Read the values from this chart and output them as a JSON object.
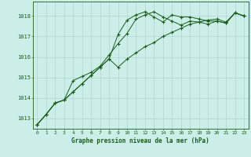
{
  "title": "Graphe pression niveau de la mer (hPa)",
  "background_color": "#cceee8",
  "grid_color": "#aacccc",
  "line_color": "#1a5c1a",
  "xlim": [
    -0.5,
    23.5
  ],
  "ylim": [
    1012.5,
    1018.7
  ],
  "yticks": [
    1013,
    1014,
    1015,
    1016,
    1017,
    1018
  ],
  "xticks": [
    0,
    1,
    2,
    3,
    4,
    5,
    6,
    7,
    8,
    9,
    10,
    11,
    12,
    13,
    14,
    15,
    16,
    17,
    18,
    19,
    20,
    21,
    22,
    23
  ],
  "series1": [
    1012.7,
    1013.2,
    1013.75,
    1013.9,
    1014.3,
    1014.7,
    1015.1,
    1015.5,
    1015.9,
    1017.1,
    1017.8,
    1018.05,
    1018.2,
    1017.95,
    1017.7,
    1018.05,
    1017.95,
    1017.95,
    1017.85,
    1017.75,
    1017.75,
    1017.65,
    1018.15,
    1018.0
  ],
  "series2": [
    1012.7,
    1013.2,
    1013.75,
    1013.9,
    1014.3,
    1014.7,
    1015.1,
    1015.5,
    1015.9,
    1015.5,
    1015.9,
    1016.2,
    1016.5,
    1016.7,
    1017.0,
    1017.2,
    1017.4,
    1017.6,
    1017.7,
    1017.8,
    1017.85,
    1017.7,
    1018.15,
    1018.0
  ],
  "series3": [
    1012.7,
    1013.2,
    1013.75,
    1013.9,
    1014.85,
    1015.05,
    1015.25,
    1015.55,
    1016.1,
    1016.65,
    1017.15,
    1017.85,
    1018.05,
    1018.2,
    1017.95,
    1017.75,
    1017.55,
    1017.75,
    1017.7,
    1017.6,
    1017.75,
    1017.65,
    1018.15,
    1018.0
  ]
}
